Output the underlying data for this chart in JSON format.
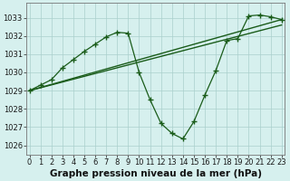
{
  "xlabel": "Graphe pression niveau de la mer (hPa)",
  "background_color": "#d6f0ee",
  "line_color": "#1a5c1a",
  "ylim": [
    1025.5,
    1033.8
  ],
  "xlim": [
    -0.3,
    23.3
  ],
  "yticks": [
    1026,
    1027,
    1028,
    1029,
    1030,
    1031,
    1032,
    1033
  ],
  "xticks": [
    0,
    1,
    2,
    3,
    4,
    5,
    6,
    7,
    8,
    9,
    10,
    11,
    12,
    13,
    14,
    15,
    16,
    17,
    18,
    19,
    20,
    21,
    22,
    23
  ],
  "series1_straight": {
    "x": [
      0,
      23
    ],
    "y": [
      1029.0,
      1032.6
    ]
  },
  "series2_straight": {
    "x": [
      0,
      23
    ],
    "y": [
      1029.0,
      1032.9
    ]
  },
  "series3_wavy": {
    "x": [
      0,
      1,
      2,
      3,
      4,
      5,
      6,
      7,
      8,
      9,
      10,
      11,
      12,
      13,
      14,
      15,
      16,
      17,
      18,
      19,
      20,
      21,
      22,
      23
    ],
    "y": [
      1029.0,
      1029.3,
      1029.6,
      1030.25,
      1030.7,
      1031.15,
      1031.55,
      1031.95,
      1032.2,
      1032.15,
      1030.0,
      1028.5,
      1027.2,
      1026.65,
      1026.35,
      1027.3,
      1028.75,
      1030.1,
      1031.75,
      1031.85,
      1033.1,
      1033.15,
      1033.05,
      1032.9
    ]
  },
  "grid_color": "#aad0cc",
  "tick_fontsize": 6,
  "xlabel_fontsize": 7.5
}
